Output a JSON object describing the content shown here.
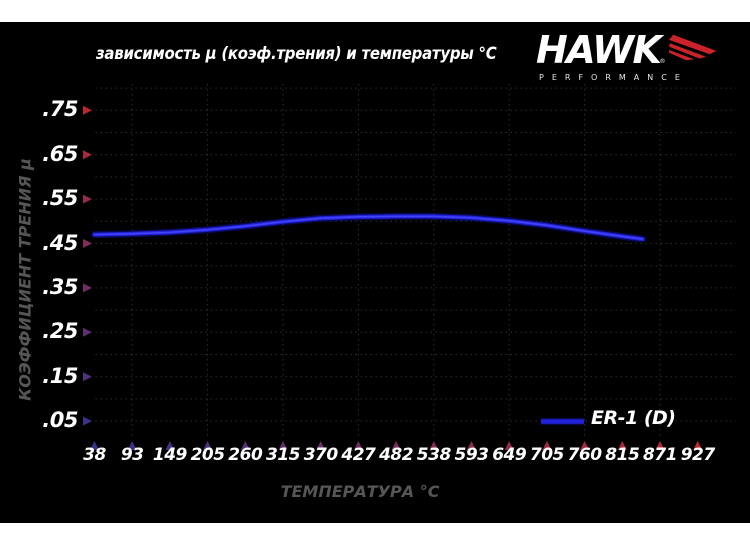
{
  "header": {
    "title": "зависимость μ (коэф.трения) и температуры °C"
  },
  "logo": {
    "brand": "HAWK",
    "reg_mark": "®",
    "subtitle": "PERFORMANCE"
  },
  "legend": {
    "label": "ER-1 (D)"
  },
  "axes": {
    "x_label": "ТЕМПЕРАТУРА °C",
    "y_label": "КОЭФФИЦИЕНТ ТРЕНИЯ μ"
  },
  "colors": {
    "background": "#000000",
    "page_margin": "#ffffff",
    "axis_red": "#c1272d",
    "axis_blue": "#34348c",
    "line_blue": "#2222dd",
    "line_glow": "#0e0e96",
    "line_core": "#4747f7",
    "grid": "#2e2e2e",
    "tick_text": "#ffffff",
    "axis_label_gray": "#565656",
    "logo_red": "#cc2229"
  },
  "chart_data": {
    "type": "line",
    "title": "зависимость μ (коэф.трения) и температуры °C",
    "xlabel": "ТЕМПЕРАТУРА °C",
    "ylabel": "КОЭФФИЦИЕНТ ТРЕНИЯ μ",
    "x_ticks": [
      38,
      93,
      149,
      205,
      260,
      315,
      370,
      427,
      482,
      538,
      593,
      649,
      705,
      760,
      815,
      871,
      927
    ],
    "y_ticks": [
      0.75,
      0.65,
      0.55,
      0.45,
      0.35,
      0.25,
      0.15,
      0.05
    ],
    "y_tick_labels": [
      ".75",
      ".65",
      ".55",
      ".45",
      ".35",
      ".25",
      ".15",
      ".05"
    ],
    "ylim": [
      0,
      0.8
    ],
    "xlim": [
      38,
      927
    ],
    "grid": "dotted",
    "legend_position": "lower right",
    "series": [
      {
        "name": "ER-1 (D)",
        "color": "#2222dd",
        "x": [
          38,
          93,
          149,
          205,
          260,
          315,
          370,
          427,
          482,
          538,
          593,
          649,
          705,
          760,
          815,
          845
        ],
        "y": [
          0.47,
          0.472,
          0.475,
          0.481,
          0.489,
          0.499,
          0.507,
          0.51,
          0.511,
          0.511,
          0.508,
          0.501,
          0.491,
          0.478,
          0.466,
          0.46
        ]
      }
    ]
  }
}
